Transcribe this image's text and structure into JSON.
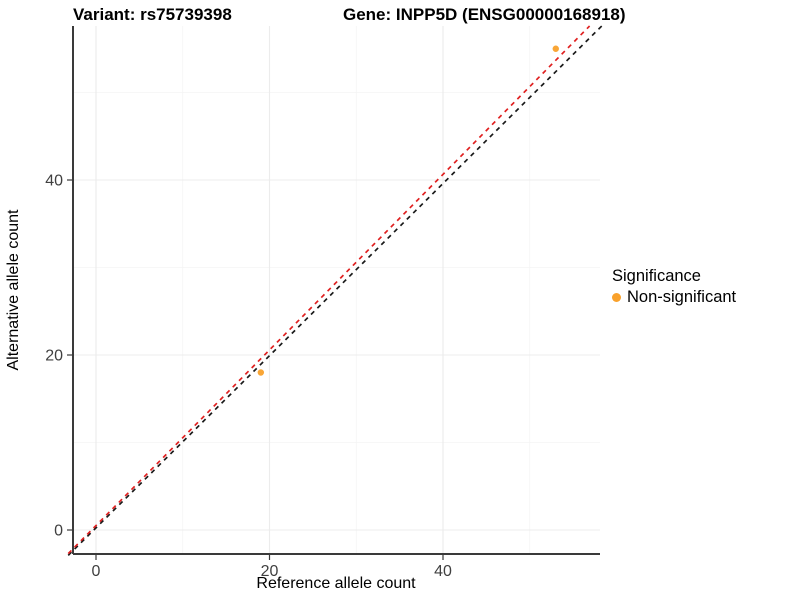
{
  "titles": {
    "variant": "Variant: rs75739398",
    "gene": "Gene: INPP5D (ENSG00000168918)"
  },
  "chart_data": {
    "type": "scatter",
    "xlabel": "Reference allele count",
    "ylabel": "Alternative allele count",
    "x_ticks": [
      0,
      20,
      40
    ],
    "y_ticks": [
      0,
      20,
      40
    ],
    "x_minor_ticks": [
      10,
      30,
      50
    ],
    "y_minor_ticks": [
      10,
      30,
      50
    ],
    "xlim": [
      -3.2,
      58.3
    ],
    "ylim": [
      -2.9,
      57.6
    ],
    "grid": true,
    "point_color": "#F9A12B",
    "points": [
      {
        "x": 19,
        "y": 18,
        "series": "Non-significant"
      },
      {
        "x": 53,
        "y": 55,
        "series": "Non-significant"
      }
    ],
    "reference_lines": [
      {
        "name": "identity-line",
        "color": "#1A1A1A",
        "style": "dashed",
        "x1": -3.2,
        "y1": -2.9,
        "x2": 58.3,
        "y2": 57.6
      },
      {
        "name": "fitted-line",
        "color": "#E02020",
        "style": "dashed",
        "x1": -3.2,
        "y1": -2.7,
        "x2": 56.9,
        "y2": 57.6
      }
    ],
    "legend": {
      "title": "Significance",
      "position": "right",
      "entries": [
        {
          "label": "Non-significant",
          "color": "#F9A12B"
        }
      ]
    }
  }
}
